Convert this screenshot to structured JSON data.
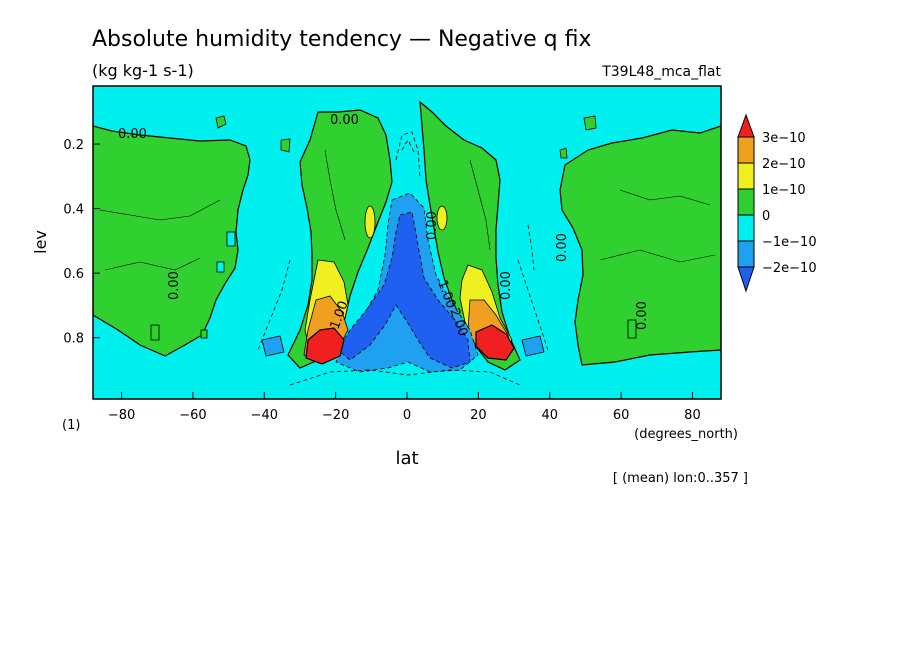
{
  "chart_data": {
    "type": "contour",
    "title": "Absolute humidity tendency — Negative q fix",
    "units": "(kg kg-1 s-1)",
    "run_label": "T39L48_mca_flat",
    "xlabel": "lat",
    "x_units": "(degrees_north)",
    "ylabel": "lev",
    "panel_number": "(1)",
    "footnote": "[ (mean) lon:0..357 ]",
    "xlim": [
      -88,
      88
    ],
    "ylim": [
      0.99,
      0.02
    ],
    "y_inverted": true,
    "x_ticks": [
      -80,
      -60,
      -40,
      -20,
      0,
      20,
      40,
      60,
      80
    ],
    "x_tick_labels": [
      "−80",
      "−60",
      "−40",
      "−20",
      "0",
      "20",
      "40",
      "60",
      "80"
    ],
    "y_ticks": [
      0.2,
      0.4,
      0.6,
      0.8
    ],
    "y_tick_labels": [
      "0.2",
      "0.4",
      "0.6",
      "0.8"
    ],
    "colorbar": {
      "labels": [
        "3e−10",
        "2e−10",
        "1e−10",
        "0",
        "−1e−10",
        "−2e−10"
      ],
      "bins": [
        {
          "range": "> 3e-10",
          "color": "#f02020"
        },
        {
          "range": "2e-10 to 3e-10",
          "color": "#f0a020"
        },
        {
          "range": "1e-10 to 2e-10",
          "color": "#f0f020"
        },
        {
          "range": "0 to 1e-10",
          "color": "#30d030"
        },
        {
          "range": "-1e-10 to 0",
          "color": "#00f0f0"
        },
        {
          "range": "-2e-10 to -1e-10",
          "color": "#20a0f0"
        },
        {
          "range": "< -2e-10",
          "color": "#2060f0"
        }
      ]
    },
    "contour_labels": [
      "0.00",
      "0.00",
      "0.00",
      "0.00",
      "0.00",
      "0.00",
      "0.00",
      "1.00",
      "2.00",
      "1.00"
    ],
    "regions": [
      {
        "name": "southern-highlat-positive",
        "level": "0 to 1e-10",
        "lat_range": [
          -88,
          -48
        ],
        "lev_range": [
          0.12,
          0.85
        ]
      },
      {
        "name": "southern-subtropical-positive",
        "level": "0 to 1e-10",
        "lat_range": [
          -36,
          -5
        ],
        "lev_range": [
          0.08,
          0.85
        ]
      },
      {
        "name": "northern-subtropical-positive",
        "level": "0 to 1e-10",
        "lat_range": [
          5,
          32
        ],
        "lev_range": [
          0.1,
          0.85
        ]
      },
      {
        "name": "northern-highlat-positive",
        "level": "0 to 1e-10",
        "lat_range": [
          45,
          88
        ],
        "lev_range": [
          0.12,
          0.86
        ]
      },
      {
        "name": "south-peak",
        "level": "> 3e-10",
        "lat_range": [
          -30,
          -22
        ],
        "lev_range": [
          0.76,
          0.88
        ],
        "peak_lat": -27,
        "peak_lev": 0.84
      },
      {
        "name": "north-peak",
        "level": "> 3e-10",
        "lat_range": [
          20,
          28
        ],
        "lev_range": [
          0.75,
          0.86
        ],
        "peak_lat": 24,
        "peak_lev": 0.82
      },
      {
        "name": "equatorial-negative-core",
        "level": "< -2e-10",
        "lat_range": [
          -14,
          17
        ],
        "lev_range": [
          0.5,
          0.9
        ]
      }
    ]
  }
}
